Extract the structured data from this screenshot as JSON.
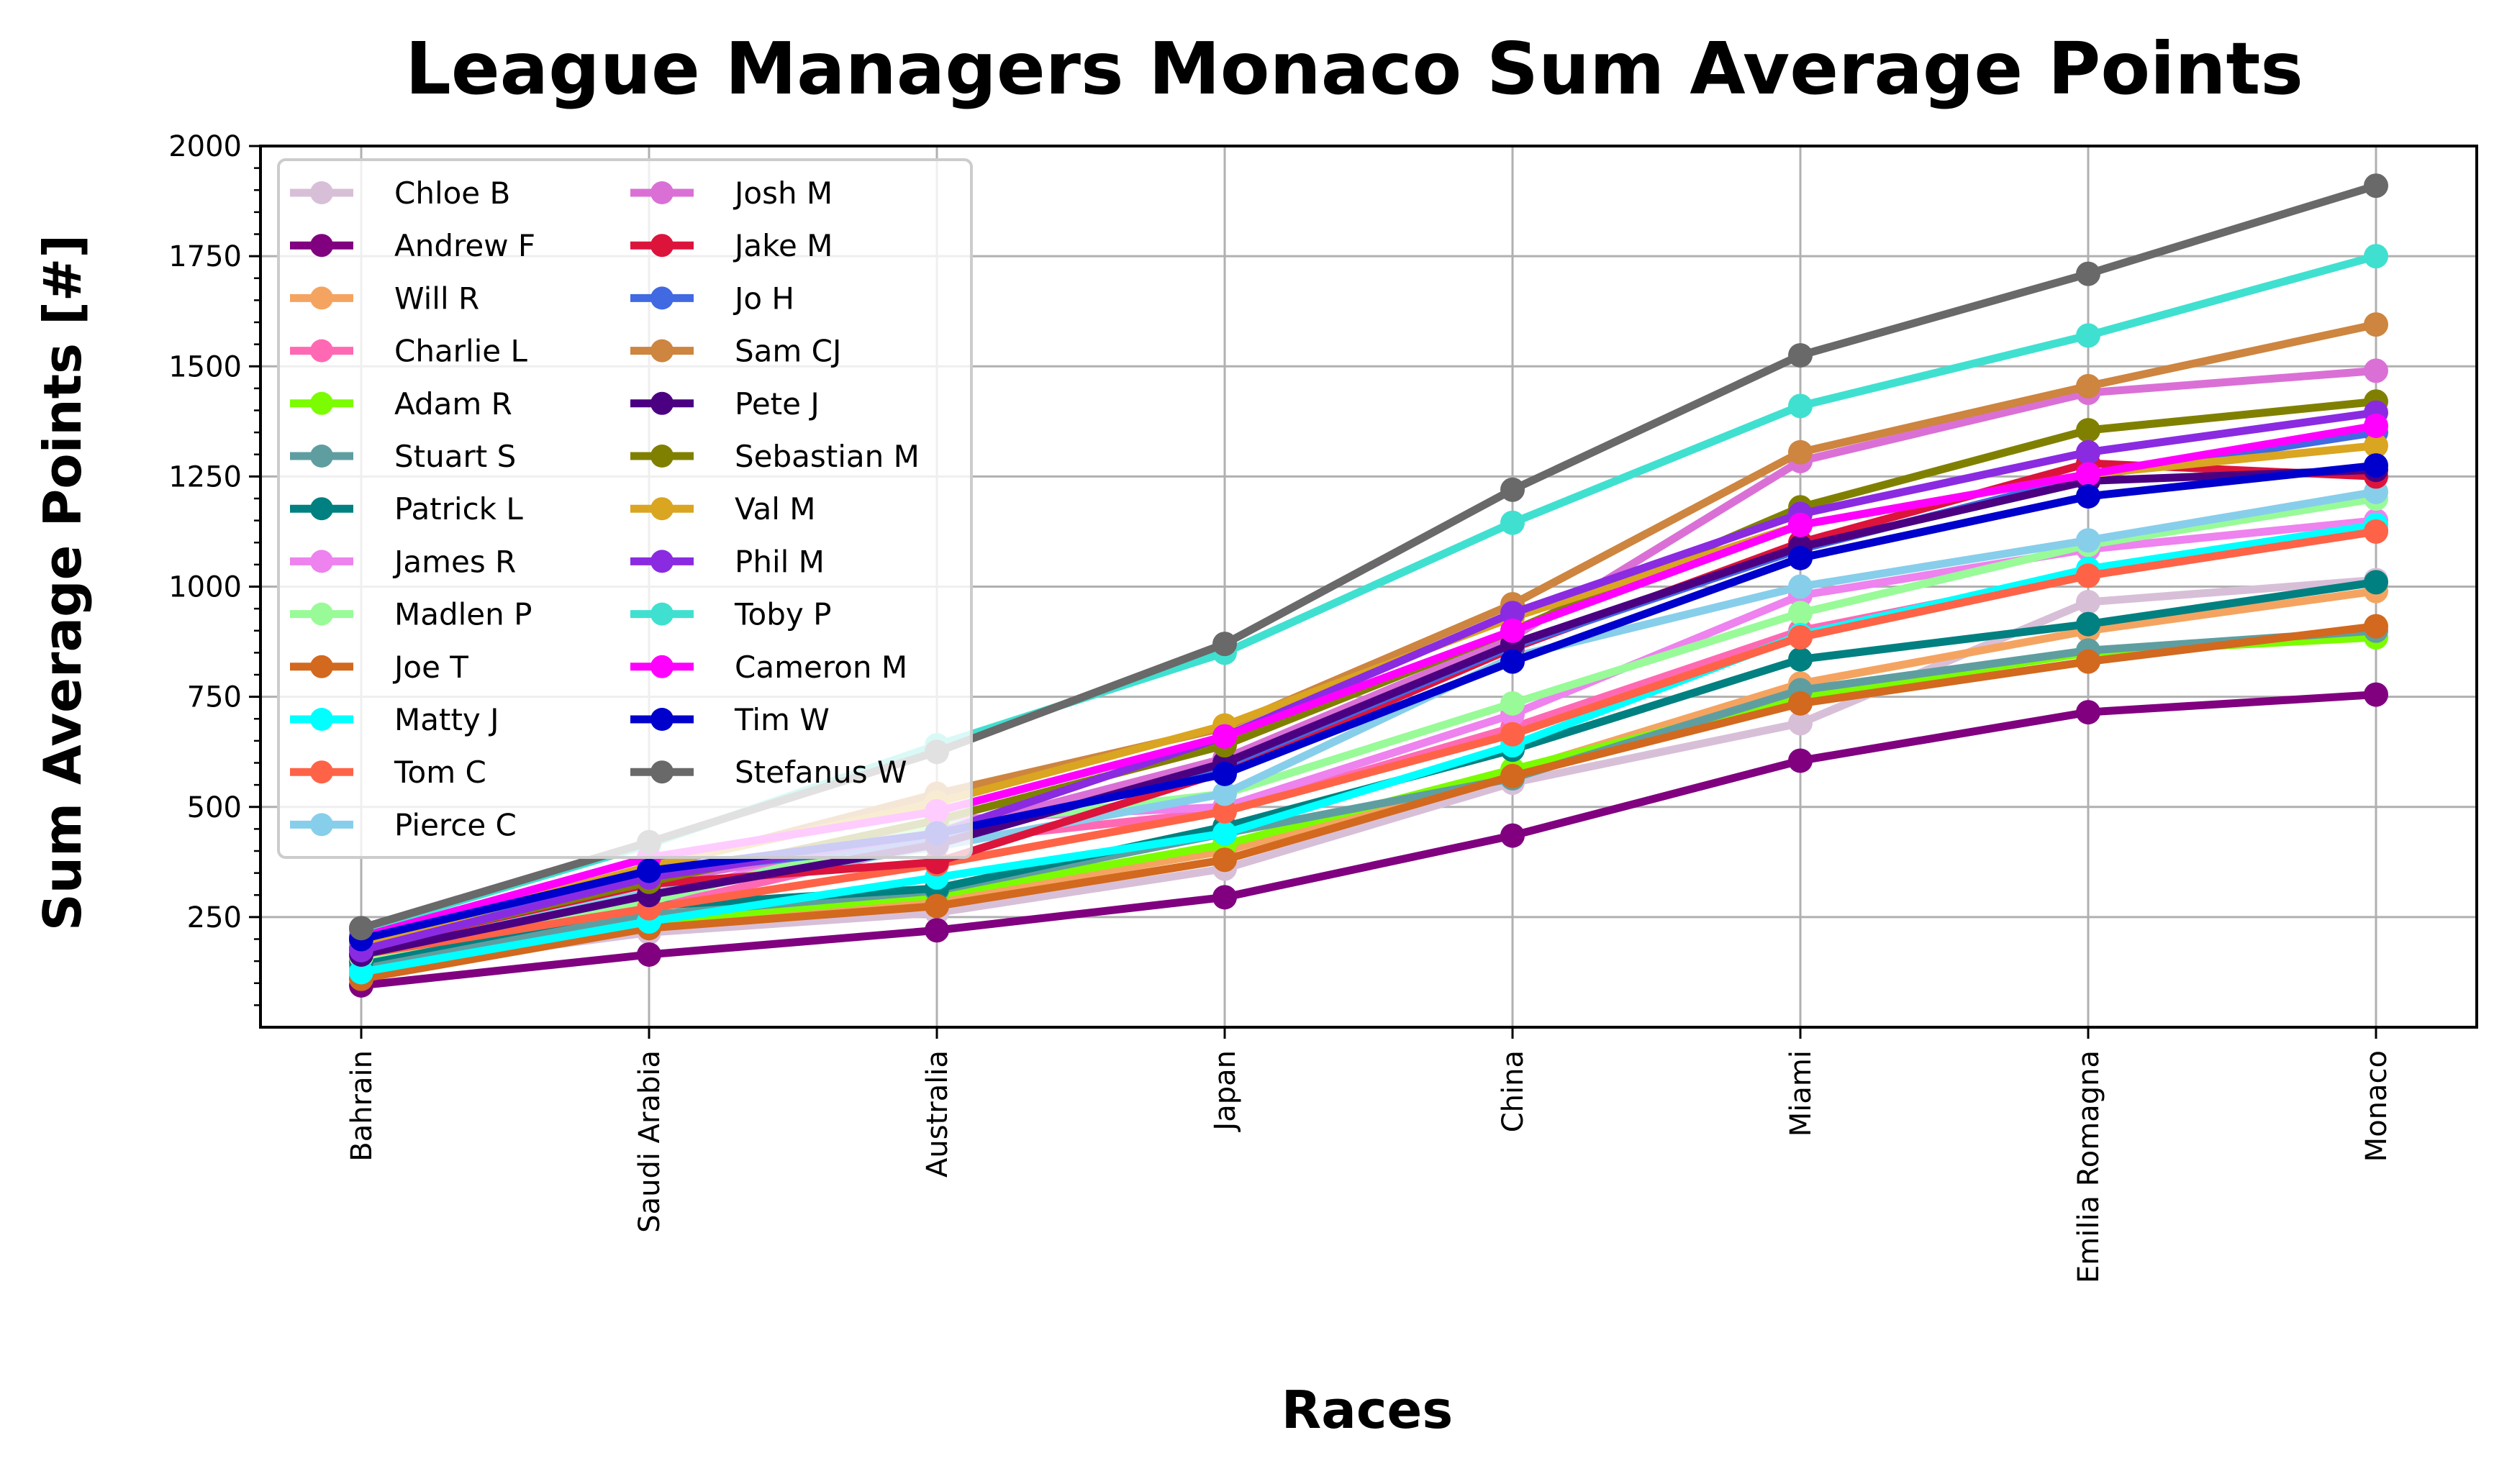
{
  "chart_data": {
    "type": "line",
    "title": "League Managers Monaco Sum Average Points",
    "xlabel": "Races",
    "ylabel": "Sum Average Points [#]",
    "categories": [
      "Bahrain",
      "Saudi Arabia",
      "Australia",
      "Japan",
      "China",
      "Miami",
      "Emilia Romagna",
      "Monaco"
    ],
    "ylim": [
      0,
      2000
    ],
    "yticks": [
      250,
      500,
      750,
      1000,
      1250,
      1500,
      1750,
      2000
    ],
    "grid": true,
    "legend_position": "top-left",
    "legend_columns": 2,
    "series": [
      {
        "name": "Chloe B",
        "color": "#D8BFD8",
        "values": [
          130,
          215,
          260,
          360,
          555,
          690,
          965,
          1015
        ]
      },
      {
        "name": "Andrew F",
        "color": "#800080",
        "values": [
          95,
          165,
          220,
          295,
          435,
          605,
          715,
          755
        ]
      },
      {
        "name": "Will R",
        "color": "#F4A460",
        "values": [
          120,
          230,
          290,
          400,
          580,
          780,
          900,
          990
        ]
      },
      {
        "name": "Charlie L",
        "color": "#FF69B4",
        "values": [
          150,
          270,
          420,
          490,
          680,
          900,
          1030,
          1130
        ]
      },
      {
        "name": "Adam R",
        "color": "#7CFC00",
        "values": [
          110,
          240,
          300,
          415,
          585,
          750,
          850,
          885
        ]
      },
      {
        "name": "Stuart S",
        "color": "#5F9EA0",
        "values": [
          140,
          255,
          310,
          440,
          565,
          765,
          855,
          900
        ]
      },
      {
        "name": "Patrick L",
        "color": "#008080",
        "values": [
          150,
          275,
          315,
          455,
          630,
          835,
          915,
          1010
        ]
      },
      {
        "name": "James R",
        "color": "#EE82EE",
        "values": [
          170,
          290,
          470,
          500,
          710,
          980,
          1085,
          1150
        ]
      },
      {
        "name": "Madlen P",
        "color": "#98FB98",
        "values": [
          160,
          285,
          455,
          530,
          735,
          940,
          1095,
          1200
        ]
      },
      {
        "name": "Joe T",
        "color": "#D2691E",
        "values": [
          110,
          225,
          275,
          380,
          570,
          735,
          830,
          910
        ]
      },
      {
        "name": "Matty J",
        "color": "#00FFFF",
        "values": [
          125,
          240,
          340,
          440,
          640,
          890,
          1040,
          1140
        ]
      },
      {
        "name": "Tom C",
        "color": "#FF6347",
        "values": [
          165,
          270,
          370,
          490,
          665,
          885,
          1025,
          1125
        ]
      },
      {
        "name": "Pierce C",
        "color": "#87CEEB",
        "values": [
          175,
          305,
          410,
          530,
          840,
          1000,
          1105,
          1215
        ]
      },
      {
        "name": "Josh M",
        "color": "#DA70D6",
        "values": [
          185,
          330,
          440,
          610,
          885,
          1285,
          1440,
          1490
        ]
      },
      {
        "name": "Jake M",
        "color": "#DC143C",
        "values": [
          180,
          325,
          375,
          580,
          860,
          1100,
          1280,
          1250
        ]
      },
      {
        "name": "Jo H",
        "color": "#4169E1",
        "values": [
          190,
          350,
          420,
          595,
          865,
          1085,
          1250,
          1350
        ]
      },
      {
        "name": "Sam CJ",
        "color": "#CD853F",
        "values": [
          195,
          360,
          530,
          680,
          960,
          1305,
          1455,
          1595
        ]
      },
      {
        "name": "Pete J",
        "color": "#4B0082",
        "values": [
          165,
          300,
          415,
          600,
          870,
          1090,
          1240,
          1265
        ]
      },
      {
        "name": "Sebastian M",
        "color": "#808000",
        "values": [
          180,
          330,
          470,
          640,
          900,
          1180,
          1355,
          1420
        ]
      },
      {
        "name": "Val M",
        "color": "#DAA520",
        "values": [
          190,
          365,
          510,
          685,
          930,
          1140,
          1255,
          1320
        ]
      },
      {
        "name": "Phil M",
        "color": "#8A2BE2",
        "values": [
          175,
          340,
          440,
          660,
          940,
          1165,
          1305,
          1395
        ]
      },
      {
        "name": "Toby P",
        "color": "#40E0D0",
        "values": [
          220,
          415,
          640,
          850,
          1145,
          1410,
          1570,
          1750
        ]
      },
      {
        "name": "Cameron M",
        "color": "#FF00FF",
        "values": [
          205,
          385,
          490,
          660,
          900,
          1140,
          1255,
          1365
        ]
      },
      {
        "name": "Tim W",
        "color": "#0000CD",
        "values": [
          200,
          355,
          440,
          575,
          830,
          1065,
          1205,
          1275
        ]
      },
      {
        "name": "Stefanus W",
        "color": "#696969",
        "values": [
          225,
          420,
          625,
          870,
          1220,
          1525,
          1710,
          1910
        ]
      }
    ]
  }
}
